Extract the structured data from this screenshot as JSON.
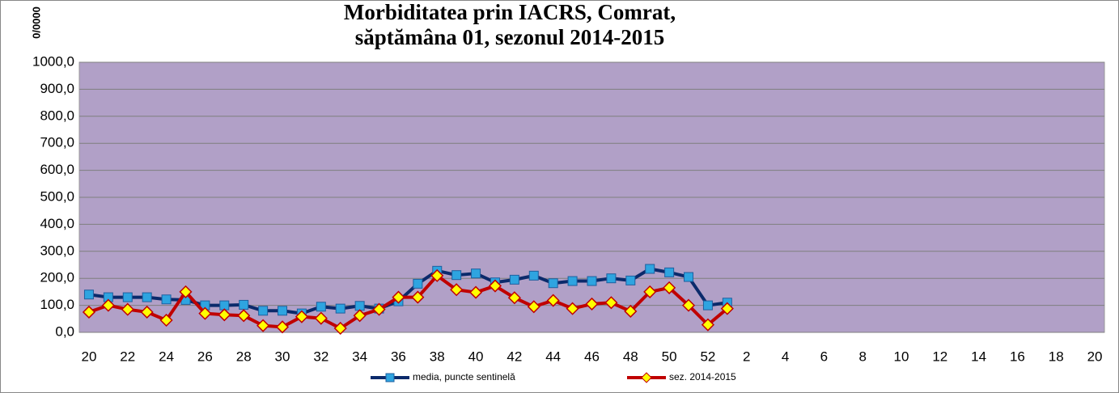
{
  "chart_data": {
    "type": "line",
    "title": [
      "Morbiditatea prin IACRS,  Comrat,",
      "săptămâna  01, sezonul  2014-2015"
    ],
    "y_label": "0/0000",
    "categories": [
      "20",
      null,
      "22",
      null,
      "24",
      null,
      "26",
      null,
      "28",
      null,
      "30",
      null,
      "32",
      null,
      "34",
      null,
      "36",
      null,
      "38",
      null,
      "40",
      null,
      "42",
      null,
      "44",
      null,
      "46",
      null,
      "48",
      null,
      "50",
      null,
      "52",
      null,
      "2",
      null,
      "4",
      null,
      "6",
      null,
      "8",
      null,
      "10",
      null,
      "12",
      null,
      "14",
      null,
      "16",
      null,
      "18",
      null,
      "20"
    ],
    "series": [
      {
        "name": "media, puncte sentinelă",
        "color": "#0b2a6b",
        "marker_color": "#2ea4e0",
        "marker": "square",
        "values": [
          140,
          130,
          130,
          130,
          122,
          120,
          100,
          100,
          102,
          80,
          80,
          70,
          95,
          88,
          98,
          88,
          115,
          180,
          228,
          212,
          218,
          185,
          195,
          210,
          182,
          190,
          190,
          200,
          192,
          235,
          222,
          205,
          100,
          110,
          null,
          null,
          null,
          null,
          null,
          null,
          null,
          null,
          null,
          null,
          null,
          null,
          null,
          null,
          null,
          null,
          null,
          null,
          null
        ]
      },
      {
        "name": "sez. 2014-2015",
        "color": "#c00000",
        "marker_color": "#ffff00",
        "marker": "diamond",
        "values": [
          75,
          100,
          85,
          75,
          45,
          150,
          70,
          65,
          62,
          25,
          20,
          58,
          52,
          15,
          62,
          85,
          130,
          130,
          210,
          158,
          148,
          172,
          128,
          95,
          118,
          88,
          105,
          110,
          78,
          150,
          165,
          100,
          28,
          88,
          null,
          null,
          null,
          null,
          null,
          null,
          null,
          null,
          null,
          null,
          null,
          null,
          null,
          null,
          null,
          null,
          null,
          null,
          null
        ]
      }
    ],
    "ylim": [
      0,
      1000
    ],
    "yticks": [
      {
        "value": 0,
        "label": "0,0"
      },
      {
        "value": 100,
        "label": "100,0"
      },
      {
        "value": 200,
        "label": "200,0"
      },
      {
        "value": 300,
        "label": "300,0"
      },
      {
        "value": 400,
        "label": "400,0"
      },
      {
        "value": 500,
        "label": "500,0"
      },
      {
        "value": 600,
        "label": "600,0"
      },
      {
        "value": 700,
        "label": "700,0"
      },
      {
        "value": 800,
        "label": "800,0"
      },
      {
        "value": 900,
        "label": "900,0"
      },
      {
        "value": 1000,
        "label": "1000,0"
      }
    ],
    "grid": true,
    "plot_background": "#b1a0c7",
    "legend": "bottom"
  }
}
